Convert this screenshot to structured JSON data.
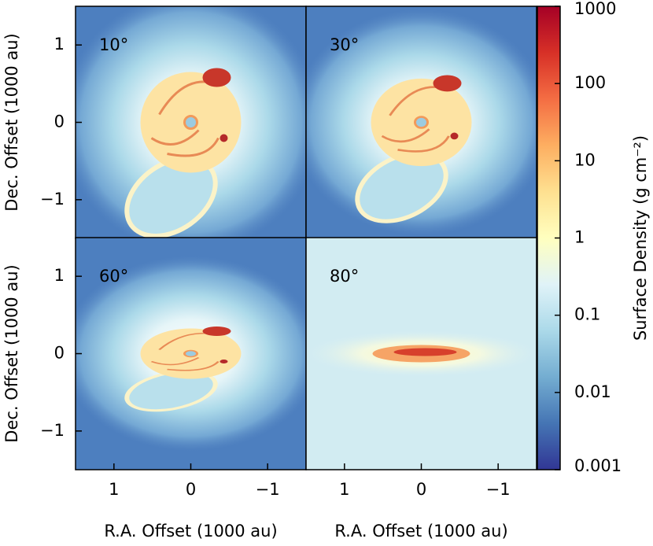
{
  "chart_data": [
    {
      "type": "image",
      "annotation": "10°",
      "ylabel": "Dec. Offset (1000 au)",
      "ylim": [
        -1.5,
        1.5
      ],
      "yticks": [
        {
          "value": -1,
          "label": "−1"
        },
        0,
        1
      ]
    },
    {
      "type": "image",
      "annotation": "30°"
    },
    {
      "type": "image",
      "annotation": "60°",
      "ylabel": "Dec. Offset (1000 au)",
      "xlabel": "R.A. Offset (1000 au)",
      "xlim": [
        1.5,
        -1.5
      ],
      "ylim": [
        -1.5,
        1.5
      ],
      "xticks": [
        1,
        0,
        {
          "value": -1,
          "label": "−1"
        }
      ],
      "yticks": [
        {
          "value": -1,
          "label": "−1"
        },
        0,
        1
      ]
    },
    {
      "type": "image",
      "annotation": "80°",
      "xlabel": "R.A. Offset (1000 au)",
      "xlim": [
        1.5,
        -1.5
      ],
      "xticks": [
        1,
        0,
        {
          "value": -1,
          "label": "−1"
        }
      ]
    },
    {
      "type": "colorbar",
      "label": "Surface Density (g cm⁻²)",
      "log_scale": true,
      "ylim": [
        0.001,
        1000
      ],
      "yticks": [
        1000,
        100,
        10,
        1,
        0.1,
        0.01,
        0.001
      ],
      "colors": [
        "#313695",
        "#4575b4",
        "#74add1",
        "#abd9e9",
        "#e0f3f8",
        "#ffffbf",
        "#fee090",
        "#fdae61",
        "#f46d43",
        "#d73027",
        "#a50026"
      ]
    }
  ]
}
